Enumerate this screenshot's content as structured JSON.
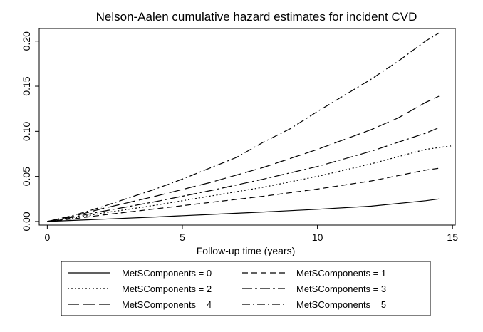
{
  "chart_data": {
    "type": "line",
    "title": "Nelson-Aalen cumulative hazard estimates for incident CVD",
    "xlabel": "Follow-up time (years)",
    "ylabel": "",
    "xlim": [
      -0.3,
      15.1
    ],
    "ylim": [
      -0.004,
      0.214
    ],
    "xticks": [
      0,
      5,
      10,
      15
    ],
    "yticks": [
      "0.00",
      "0.05",
      "0.10",
      "0.15",
      "0.20"
    ],
    "grid": false,
    "legend_position": "bottom",
    "series": [
      {
        "name": "MetSComponents = 0",
        "dash": "solid",
        "x": [
          0,
          2,
          4,
          6,
          8,
          10,
          12,
          14,
          14.5
        ],
        "y": [
          0,
          0.0025,
          0.005,
          0.0078,
          0.0105,
          0.0135,
          0.017,
          0.023,
          0.025
        ]
      },
      {
        "name": "MetSComponents = 1",
        "dash": "dash-short",
        "x": [
          0,
          1,
          2,
          4,
          6,
          8,
          10,
          12,
          14,
          14.5
        ],
        "y": [
          0,
          0.003,
          0.007,
          0.014,
          0.021,
          0.028,
          0.036,
          0.045,
          0.057,
          0.059
        ]
      },
      {
        "name": "MetSComponents = 2",
        "dash": "dot",
        "x": [
          0,
          1,
          2,
          4,
          6,
          8,
          10,
          12,
          14,
          15
        ],
        "y": [
          0,
          0.004,
          0.009,
          0.018,
          0.028,
          0.038,
          0.05,
          0.064,
          0.08,
          0.084
        ]
      },
      {
        "name": "MetSComponents = 3",
        "dash": "dash-dot",
        "x": [
          0,
          1,
          2,
          4,
          6,
          8,
          10,
          12,
          14,
          14.5
        ],
        "y": [
          0,
          0.005,
          0.011,
          0.022,
          0.034,
          0.047,
          0.061,
          0.078,
          0.098,
          0.104
        ]
      },
      {
        "name": "MetSComponents = 4",
        "dash": "dash-long",
        "x": [
          0,
          1,
          2,
          4,
          6,
          8,
          10,
          12,
          13,
          14,
          14.5
        ],
        "y": [
          0,
          0.006,
          0.014,
          0.028,
          0.043,
          0.06,
          0.08,
          0.102,
          0.115,
          0.132,
          0.139
        ]
      },
      {
        "name": "MetSComponents = 5",
        "dash": "dash-dot-long",
        "x": [
          0,
          1,
          2,
          3,
          4,
          5,
          6,
          7,
          8,
          9,
          10,
          11,
          12,
          13,
          14,
          14.5
        ],
        "y": [
          0,
          0.007,
          0.016,
          0.026,
          0.036,
          0.047,
          0.059,
          0.071,
          0.088,
          0.103,
          0.122,
          0.14,
          0.158,
          0.178,
          0.2,
          0.209
        ]
      }
    ]
  }
}
